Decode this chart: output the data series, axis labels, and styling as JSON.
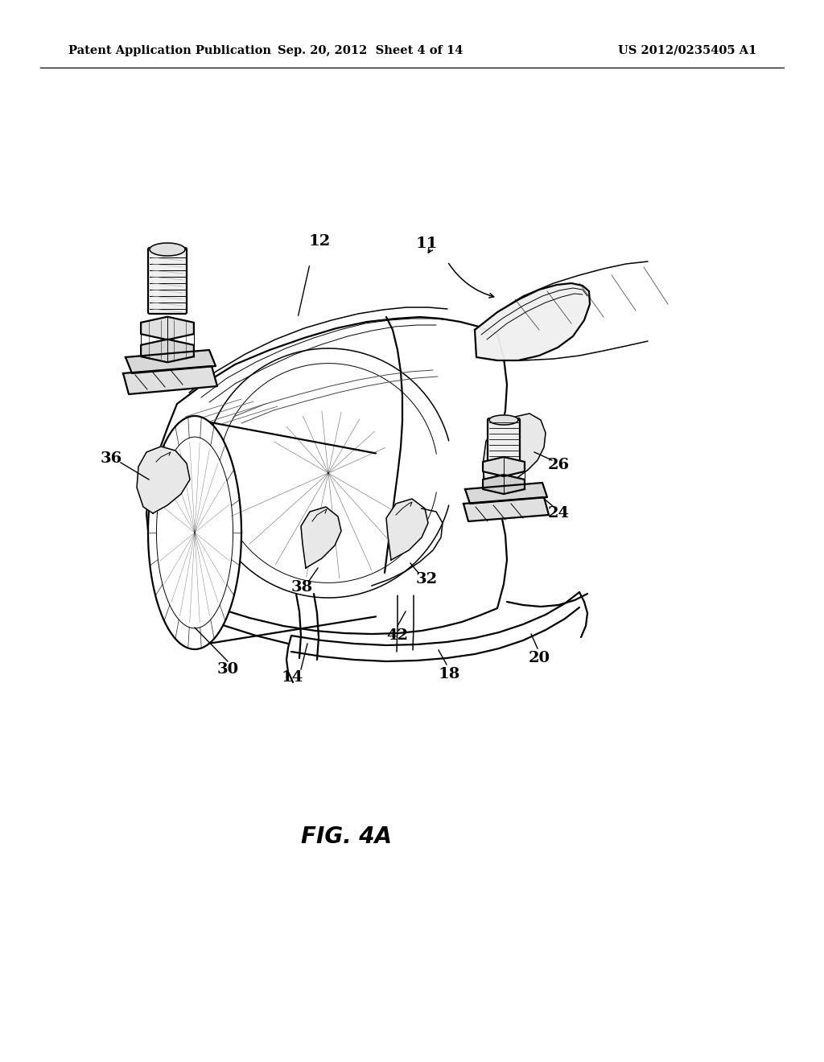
{
  "header_left": "Patent Application Publication",
  "header_middle": "Sep. 20, 2012  Sheet 4 of 14",
  "header_right": "US 2012/0235405 A1",
  "figure_label": "FIG. 4A",
  "bg": "#ffffff",
  "lc": "#000000",
  "header_fs": 10.5,
  "fig_label_fs": 20,
  "lbl_fs": 14
}
